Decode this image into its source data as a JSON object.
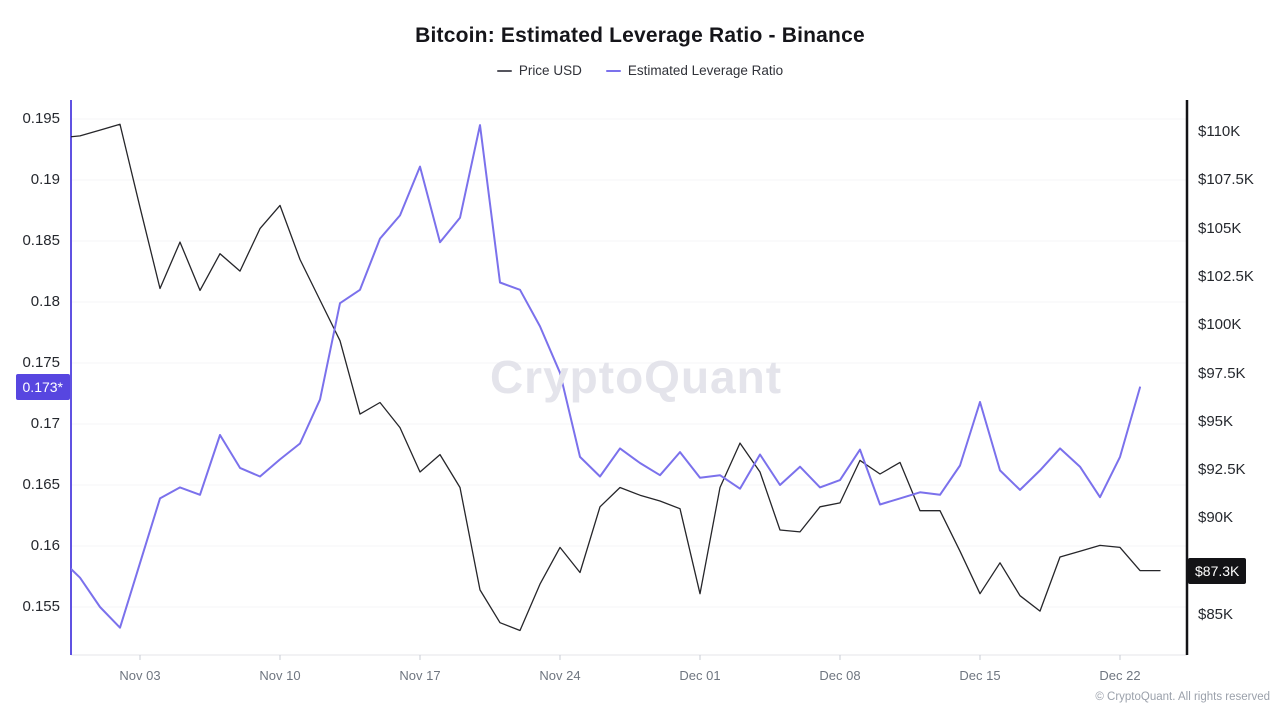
{
  "header": {
    "title": "Bitcoin: Estimated Leverage Ratio - Binance",
    "legend": [
      {
        "label": "Price USD",
        "color": "#55555e"
      },
      {
        "label": "Estimated Leverage Ratio",
        "color": "#7b71ec"
      }
    ]
  },
  "watermark": "CryptoQuant",
  "footer": {
    "copyright": "© CryptoQuant. All rights reserved"
  },
  "badges": {
    "leverage": {
      "text": "0.173*",
      "value": 0.173,
      "bg": "#5746e0"
    },
    "price": {
      "text": "$87.3K",
      "value": 87.3,
      "bg": "#131316"
    }
  },
  "axes": {
    "left": {
      "color": "#6052e2",
      "ticks": [
        0.195,
        0.19,
        0.185,
        0.18,
        0.175,
        0.17,
        0.165,
        0.16,
        0.155
      ],
      "labels": [
        "0.195",
        "0.19",
        "0.185",
        "0.18",
        "0.175",
        "0.17",
        "0.165",
        "0.16",
        "0.155"
      ]
    },
    "right": {
      "color": "#131316",
      "ticks": [
        110,
        107.5,
        105,
        102.5,
        100,
        97.5,
        95,
        92.5,
        90,
        85
      ],
      "labels": [
        "$110K",
        "$107.5K",
        "$105K",
        "$102.5K",
        "$100K",
        "$97.5K",
        "$95K",
        "$92.5K",
        "$90K",
        "$85K"
      ]
    },
    "x": {
      "tick_indices": [
        4,
        11,
        18,
        25,
        32,
        39,
        46,
        53
      ],
      "labels": [
        "Nov 03",
        "Nov 10",
        "Nov 17",
        "Nov 24",
        "Dec 01",
        "Dec 08",
        "Dec 15",
        "Dec 22"
      ]
    }
  },
  "chart_data": {
    "type": "line",
    "title": "Bitcoin: Estimated Leverage Ratio - Binance",
    "grid": "faint-horizontal",
    "legend_position": "top",
    "left_axis_label": "Estimated Leverage Ratio",
    "right_axis_label": "Price USD",
    "left_axis_range": [
      0.151,
      0.1966
    ],
    "right_axis_range": [
      82.9,
      111.7
    ],
    "x": [
      "Oct 30",
      "Oct 31",
      "Nov 01",
      "Nov 02",
      "Nov 03",
      "Nov 04",
      "Nov 05",
      "Nov 06",
      "Nov 07",
      "Nov 08",
      "Nov 09",
      "Nov 10",
      "Nov 11",
      "Nov 12",
      "Nov 13",
      "Nov 14",
      "Nov 15",
      "Nov 16",
      "Nov 17",
      "Nov 18",
      "Nov 19",
      "Nov 20",
      "Nov 21",
      "Nov 22",
      "Nov 23",
      "Nov 24",
      "Nov 25",
      "Nov 26",
      "Nov 27",
      "Nov 28",
      "Nov 29",
      "Nov 30",
      "Dec 01",
      "Dec 02",
      "Dec 03",
      "Dec 04",
      "Dec 05",
      "Dec 06",
      "Dec 07",
      "Dec 08",
      "Dec 09",
      "Dec 10",
      "Dec 11",
      "Dec 12",
      "Dec 13",
      "Dec 14",
      "Dec 15",
      "Dec 16",
      "Dec 17",
      "Dec 18",
      "Dec 19",
      "Dec 20",
      "Dec 21",
      "Dec 22",
      "Dec 23",
      "Dec 24"
    ],
    "series": [
      {
        "name": "Price USD",
        "axis": "right",
        "unit": "thousand USD",
        "color": "#26262a",
        "values": [
          109.7,
          109.8,
          110.1,
          110.4,
          106.1,
          101.9,
          104.3,
          101.8,
          103.7,
          102.8,
          105.0,
          106.2,
          103.4,
          101.3,
          99.2,
          95.4,
          96.0,
          94.7,
          92.4,
          93.3,
          91.6,
          86.3,
          84.6,
          84.2,
          86.6,
          88.5,
          87.2,
          90.6,
          91.6,
          91.2,
          90.9,
          90.5,
          86.1,
          91.6,
          93.9,
          92.4,
          89.4,
          89.3,
          90.6,
          90.8,
          93.0,
          92.3,
          92.9,
          90.4,
          90.4,
          88.3,
          86.1,
          87.7,
          86.0,
          85.2,
          88.0,
          88.3,
          88.6,
          88.5,
          87.3,
          87.3
        ]
      },
      {
        "name": "Estimated Leverage Ratio",
        "axis": "left",
        "unit": "ratio",
        "color": "#7b71ec",
        "values": [
          0.159,
          0.1574,
          0.155,
          0.1533,
          0.1586,
          0.1639,
          0.1648,
          0.1642,
          0.1691,
          0.1664,
          0.1657,
          0.1671,
          0.1684,
          0.172,
          0.1799,
          0.181,
          0.1852,
          0.1871,
          0.1911,
          0.1849,
          0.1869,
          0.1945,
          0.1816,
          0.181,
          0.178,
          0.1742,
          0.1673,
          0.1657,
          0.168,
          0.1668,
          0.1658,
          0.1677,
          0.1656,
          0.1658,
          0.1647,
          0.1675,
          0.165,
          0.1665,
          0.1648,
          0.1654,
          0.1679,
          0.1634,
          0.1639,
          0.1644,
          0.1642,
          0.1666,
          0.1718,
          0.1662,
          0.1646,
          0.1662,
          0.168,
          0.1665,
          0.164,
          0.1673,
          0.173,
          null
        ]
      }
    ]
  }
}
